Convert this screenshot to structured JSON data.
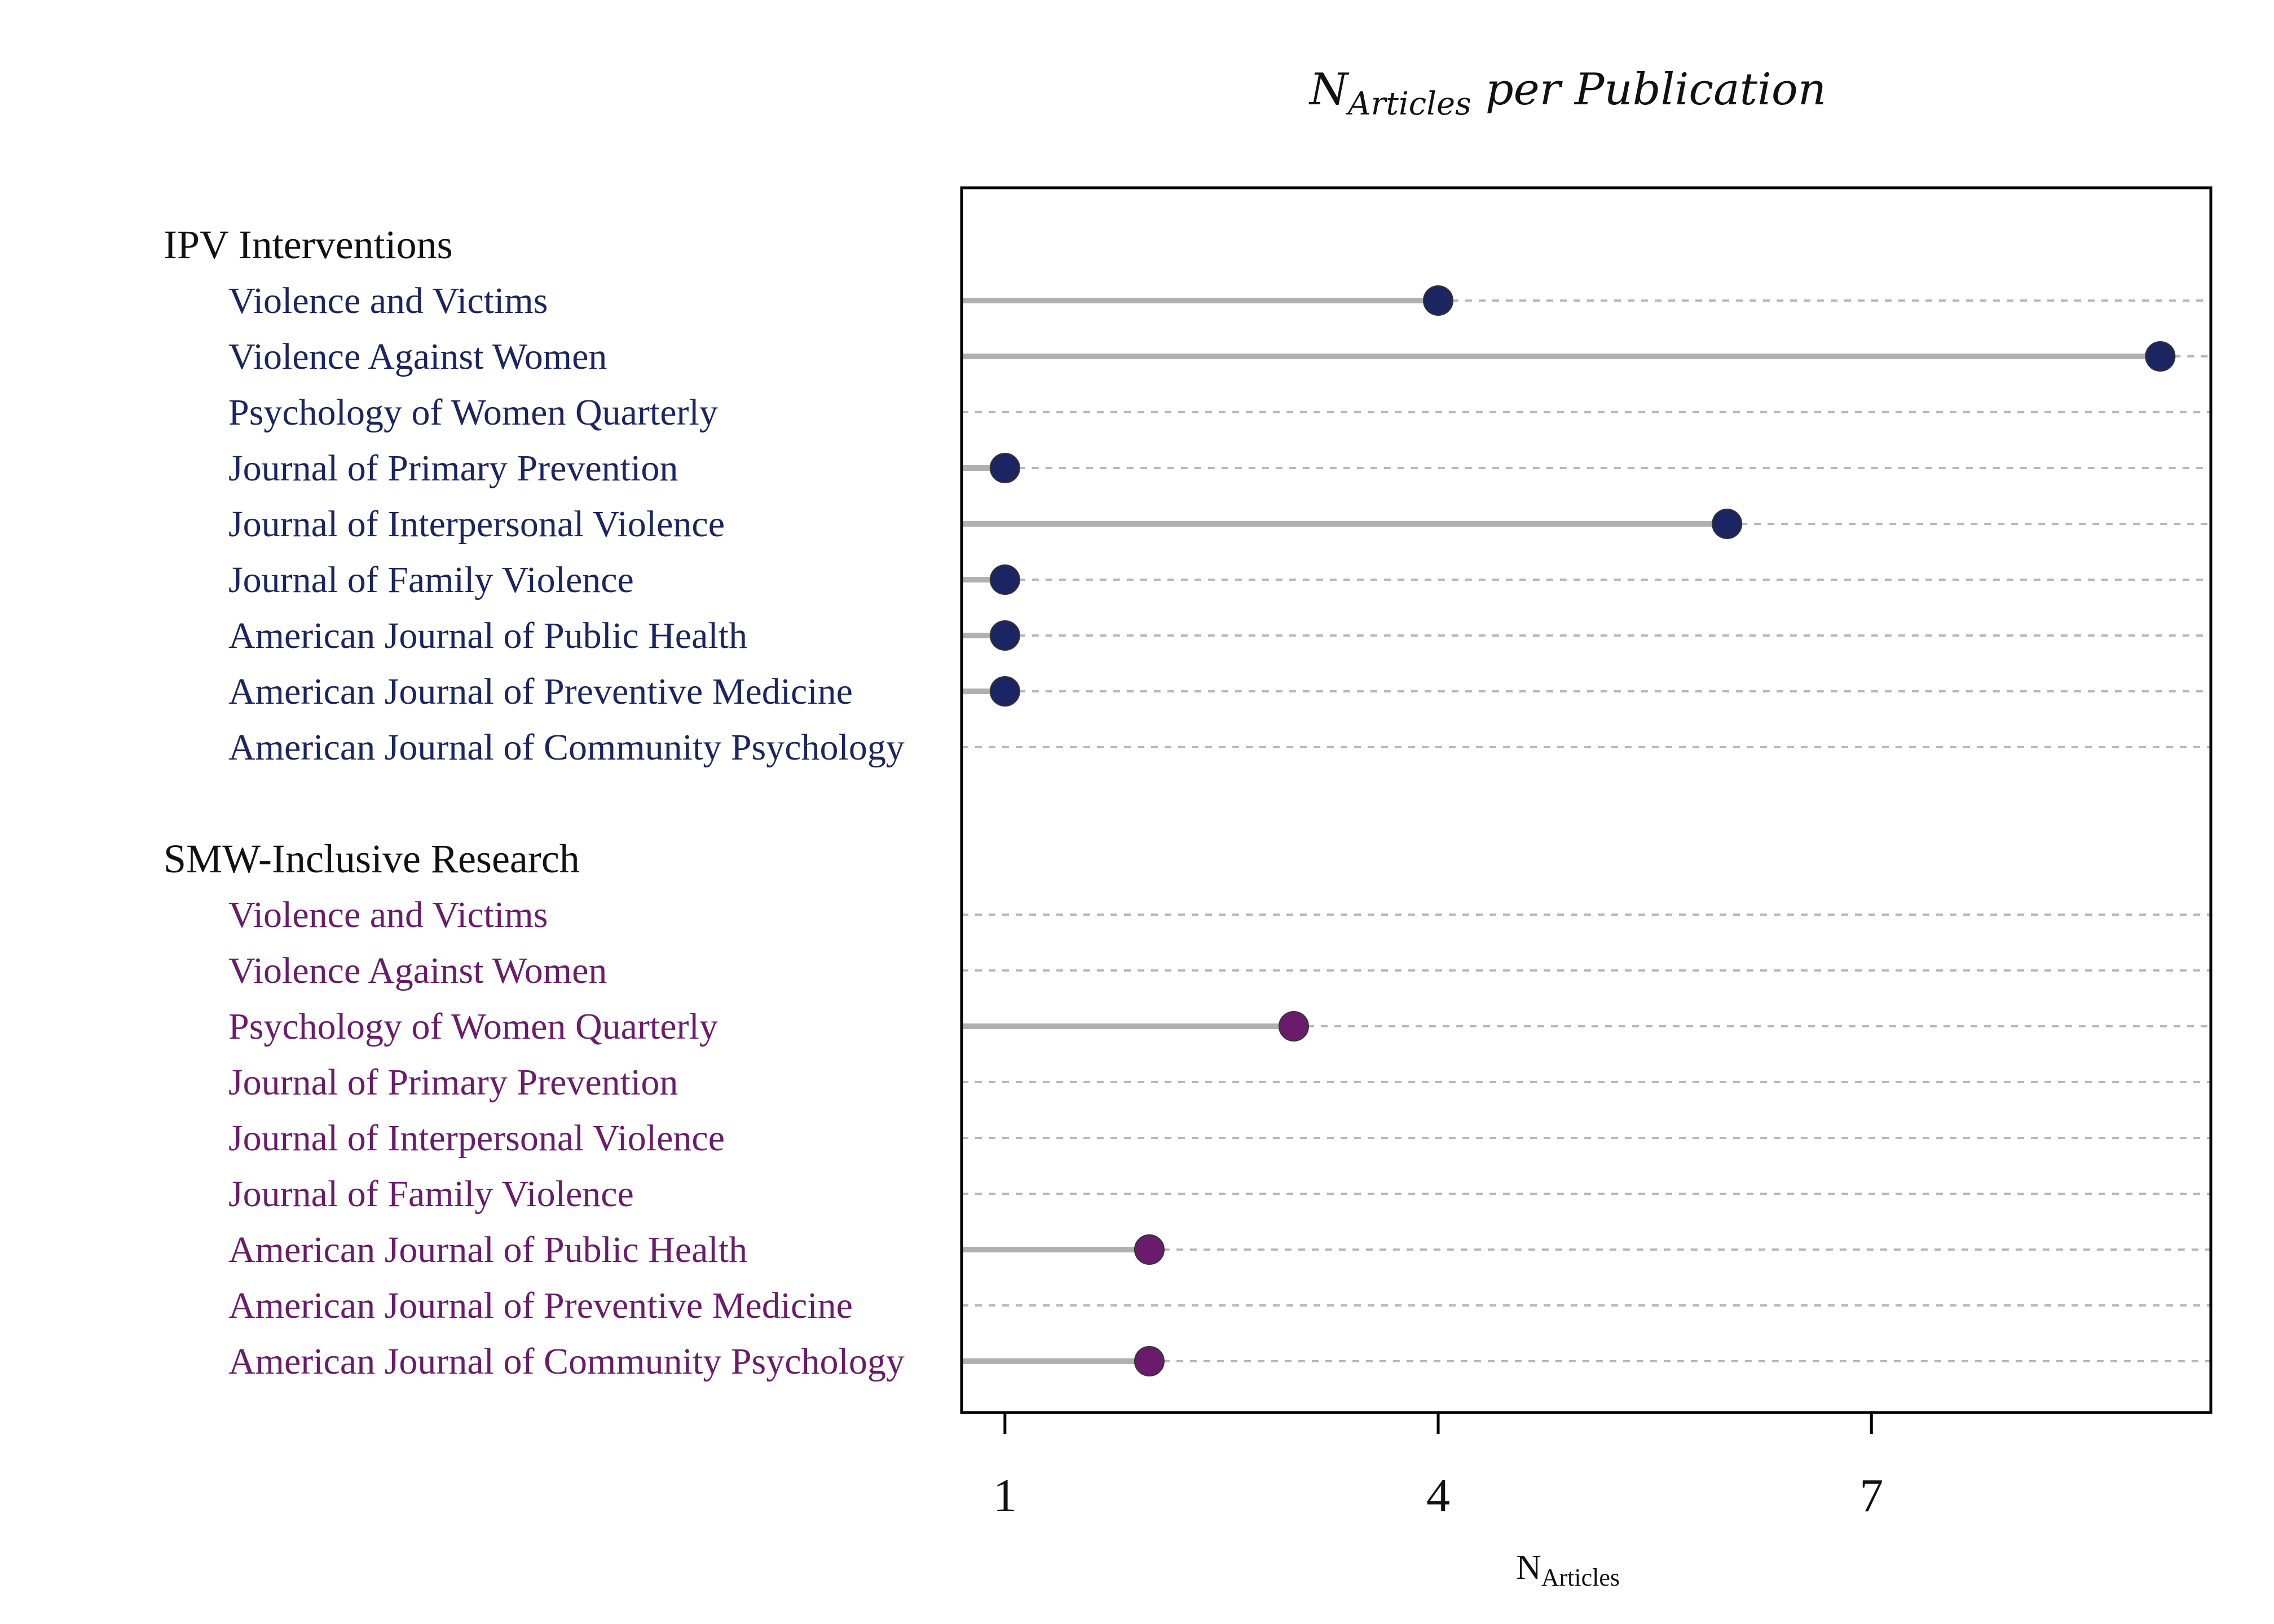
{
  "chart_data": {
    "type": "scatter",
    "title": {
      "main": "N",
      "sub": "Articles",
      "rest": " per Publication"
    },
    "xlabel": {
      "main": "N",
      "sub": "Articles"
    },
    "xlim": [
      0.7,
      9.35
    ],
    "xticks": [
      1,
      4,
      7
    ],
    "xtick_labels": [
      "1",
      "4",
      "7"
    ],
    "grid": true,
    "groups": [
      {
        "name": "IPV Interventions",
        "color": "#1b2561",
        "rows": [
          {
            "label": "Violence and Victims",
            "value": 4
          },
          {
            "label": "Violence Against Women",
            "value": 9
          },
          {
            "label": "Psychology of Women Quarterly",
            "value": null
          },
          {
            "label": "Journal of Primary Prevention",
            "value": 1
          },
          {
            "label": "Journal of Interpersonal Violence",
            "value": 6
          },
          {
            "label": "Journal of Family Violence",
            "value": 1
          },
          {
            "label": "American Journal of Public Health",
            "value": 1
          },
          {
            "label": "American Journal of Preventive Medicine",
            "value": 1
          },
          {
            "label": "American Journal of Community Psychology",
            "value": null
          }
        ]
      },
      {
        "name": "SMW-Inclusive Research",
        "color": "#6b1b6b",
        "rows": [
          {
            "label": "Violence and Victims",
            "value": null
          },
          {
            "label": "Violence Against Women",
            "value": null
          },
          {
            "label": "Psychology of Women Quarterly",
            "value": 3
          },
          {
            "label": "Journal of Primary Prevention",
            "value": null
          },
          {
            "label": "Journal of Interpersonal Violence",
            "value": null
          },
          {
            "label": "Journal of Family Violence",
            "value": null
          },
          {
            "label": "American Journal of Public Health",
            "value": 2
          },
          {
            "label": "American Journal of Preventive Medicine",
            "value": null
          },
          {
            "label": "American Journal of Community Psychology",
            "value": 2
          }
        ]
      }
    ]
  },
  "colors": {
    "stem": "#b0b0b0",
    "grid": "#b8b8b8",
    "frame": "#000000"
  }
}
